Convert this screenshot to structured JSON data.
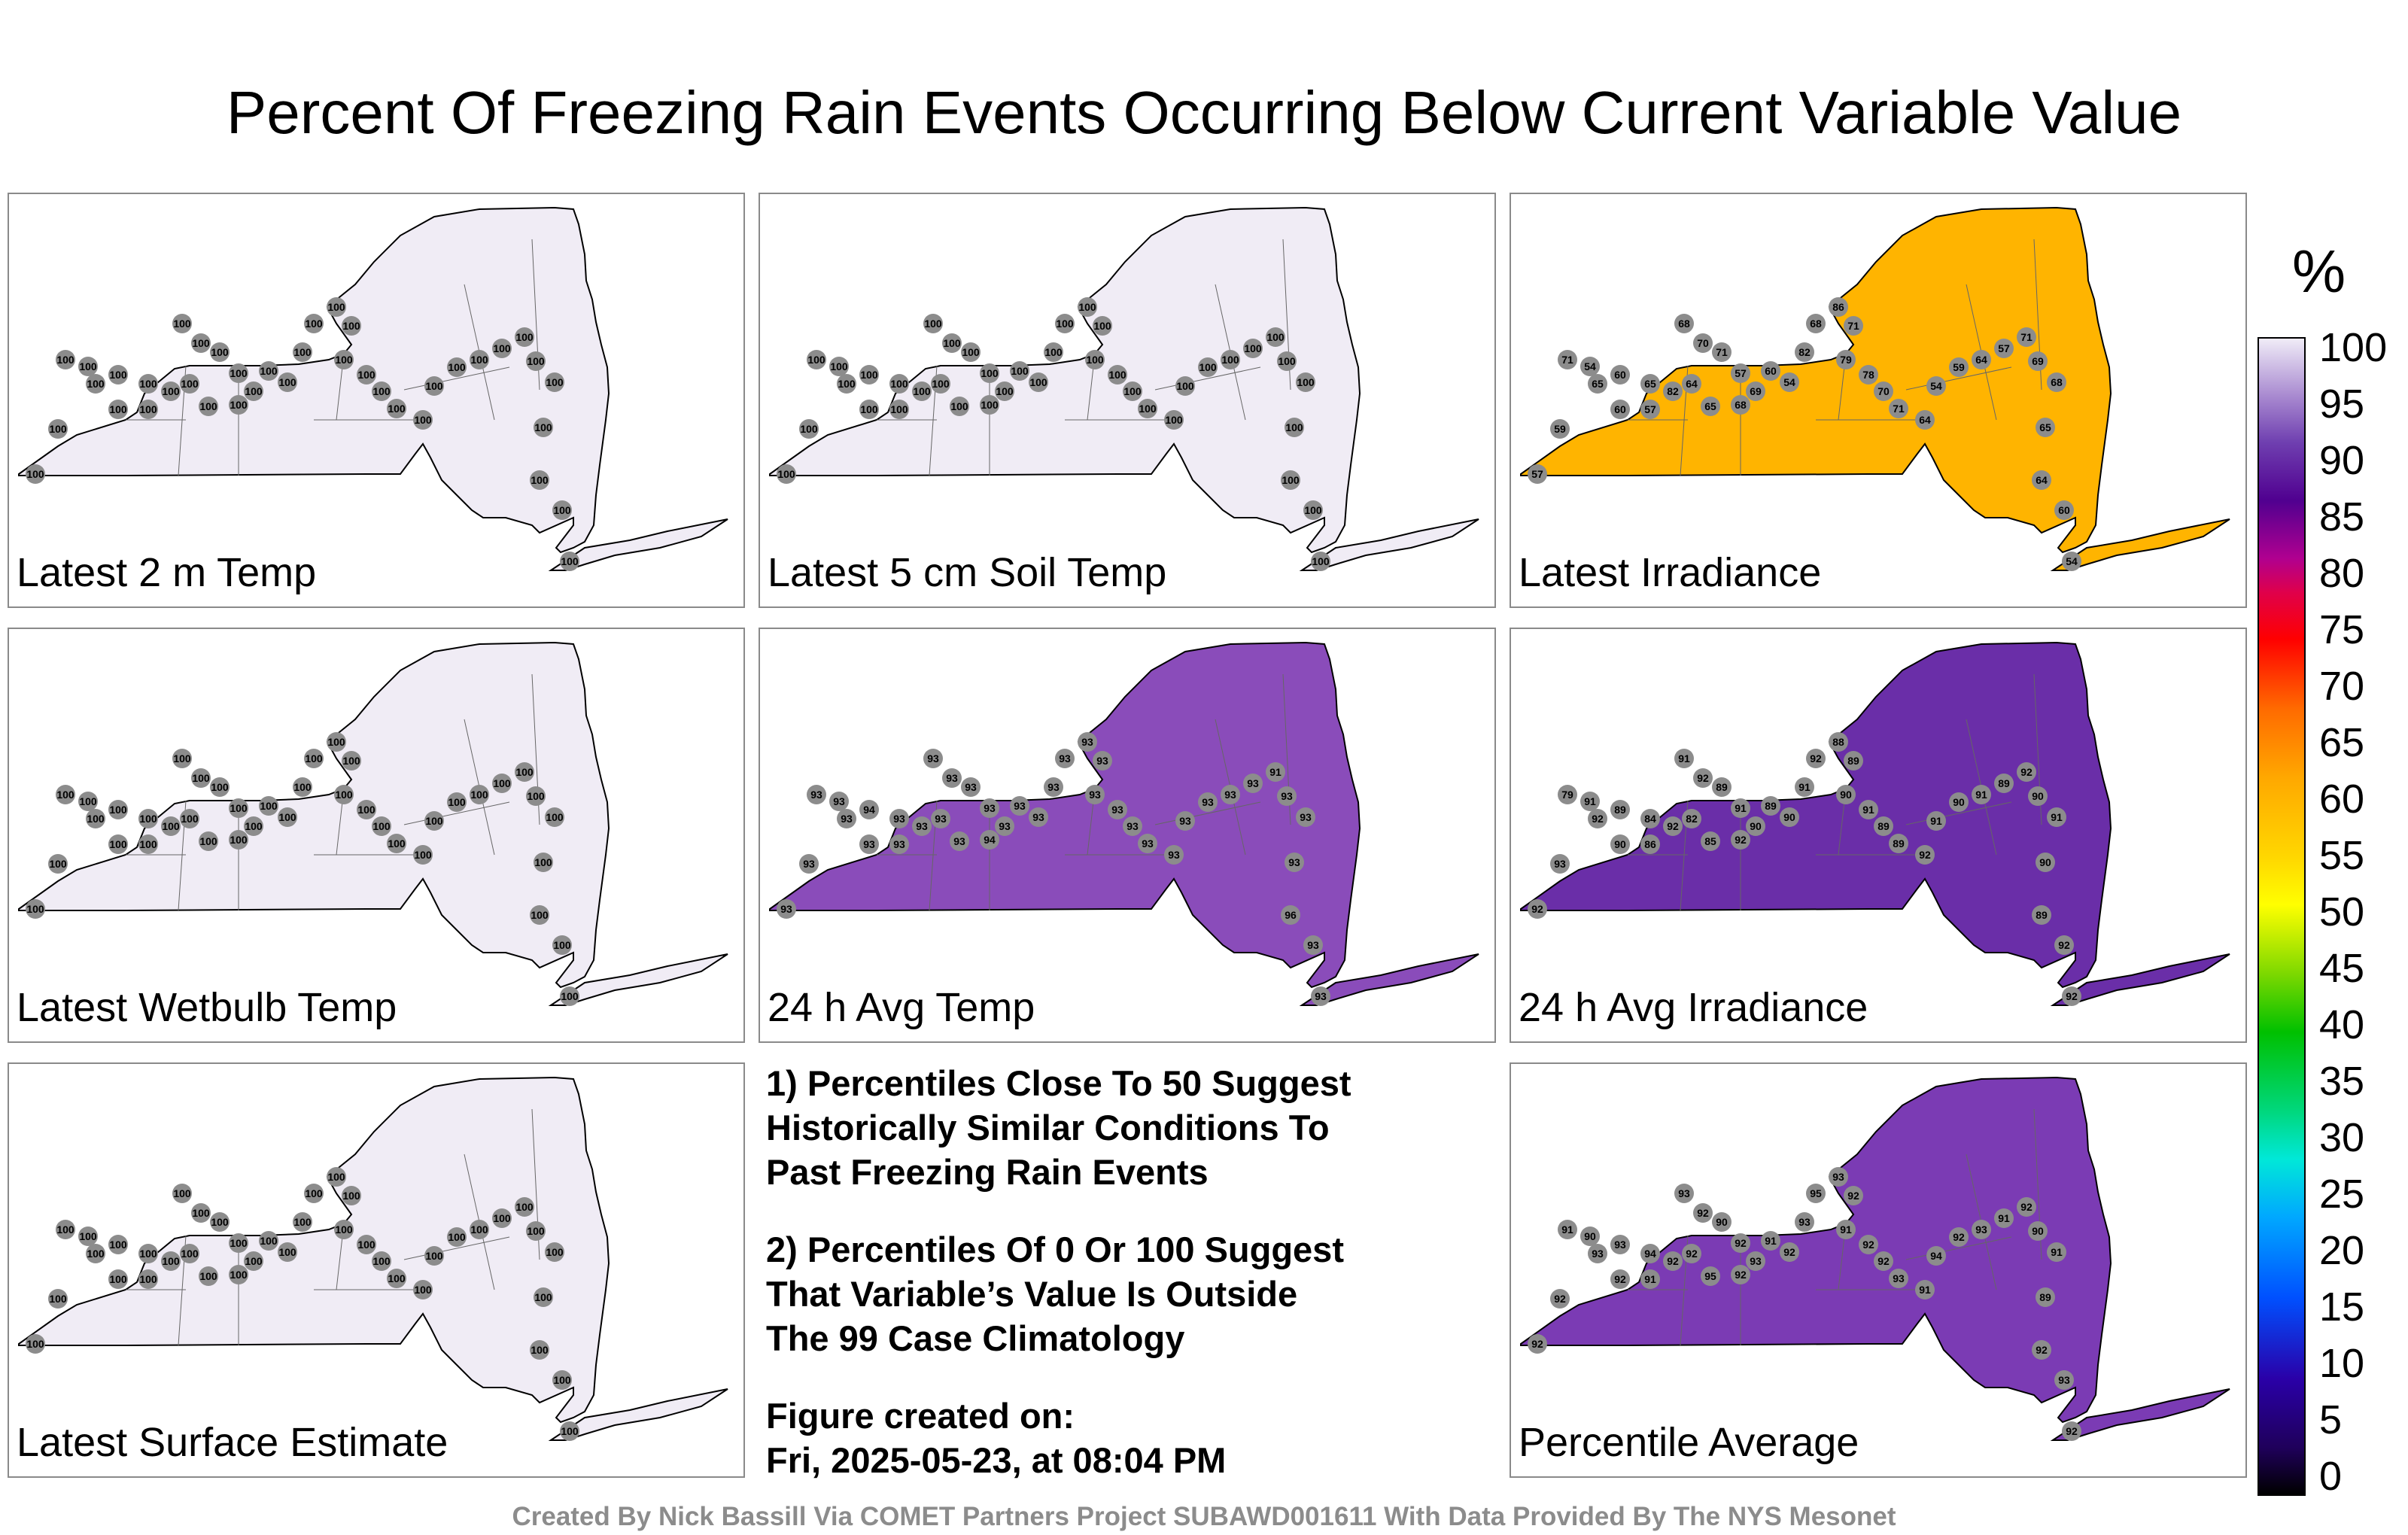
{
  "title": "Percent Of Freezing Rain Events Occurring Below Current Variable Value",
  "panels": [
    {
      "label": "Latest 2 m Temp",
      "fill": "#f0ecf5",
      "values": [
        100,
        100,
        100,
        100,
        100,
        100,
        100,
        100,
        100,
        100,
        100,
        100,
        100,
        100,
        100,
        100,
        100,
        100,
        100,
        100,
        100,
        100,
        100,
        100,
        100,
        100,
        100,
        100,
        100,
        100,
        100,
        100,
        100,
        100,
        100,
        100,
        100,
        100,
        100,
        100
      ]
    },
    {
      "label": "Latest 5 cm Soil Temp",
      "fill": "#f0ecf5",
      "values": [
        100,
        100,
        100,
        100,
        100,
        100,
        100,
        100,
        100,
        100,
        100,
        100,
        100,
        100,
        100,
        100,
        100,
        100,
        100,
        100,
        100,
        100,
        100,
        100,
        100,
        100,
        100,
        100,
        100,
        100,
        100,
        100,
        100,
        100,
        100,
        100,
        100,
        100,
        100,
        100
      ]
    },
    {
      "label": "Latest Irradiance",
      "fill": "#ffb400",
      "values": [
        57,
        59,
        71,
        54,
        65,
        60,
        60,
        57,
        65,
        82,
        64,
        65,
        68,
        70,
        71,
        57,
        68,
        69,
        60,
        54,
        82,
        68,
        86,
        71,
        79,
        78,
        70,
        71,
        64,
        54,
        59,
        64,
        57,
        71,
        69,
        68,
        65,
        64,
        60,
        54
      ]
    },
    {
      "label": "Latest Wetbulb Temp",
      "fill": "#f0ecf5",
      "values": [
        100,
        100,
        100,
        100,
        100,
        100,
        100,
        100,
        100,
        100,
        100,
        100,
        100,
        100,
        100,
        100,
        100,
        100,
        100,
        100,
        100,
        100,
        100,
        100,
        100,
        100,
        100,
        100,
        100,
        100,
        100,
        100,
        100,
        100,
        100,
        100,
        100,
        100,
        100,
        100
      ]
    },
    {
      "label": "24 h Avg Temp",
      "fill": "#8a4cba",
      "values": [
        93,
        93,
        93,
        93,
        93,
        94,
        93,
        93,
        93,
        93,
        93,
        93,
        93,
        93,
        93,
        93,
        94,
        93,
        93,
        93,
        93,
        93,
        93,
        93,
        93,
        93,
        93,
        93,
        93,
        93,
        93,
        93,
        93,
        91,
        93,
        93,
        93,
        96,
        93,
        93
      ]
    },
    {
      "label": "24 h Avg Irradiance",
      "fill": "#6a2ea8",
      "values": [
        92,
        93,
        79,
        91,
        92,
        89,
        90,
        86,
        84,
        92,
        82,
        85,
        91,
        92,
        89,
        91,
        92,
        90,
        89,
        90,
        91,
        92,
        88,
        89,
        90,
        91,
        89,
        89,
        92,
        91,
        90,
        91,
        89,
        92,
        90,
        91,
        90,
        89,
        92,
        92
      ]
    },
    {
      "label": "Latest Surface Estimate",
      "fill": "#f0ecf5",
      "values": [
        100,
        100,
        100,
        100,
        100,
        100,
        100,
        100,
        100,
        100,
        100,
        100,
        100,
        100,
        100,
        100,
        100,
        100,
        100,
        100,
        100,
        100,
        100,
        100,
        100,
        100,
        100,
        100,
        100,
        100,
        100,
        100,
        100,
        100,
        100,
        100,
        100,
        100,
        100,
        100
      ]
    },
    {
      "label": "Percentile Average",
      "fill": "#7b3bb4",
      "values": [
        92,
        92,
        91,
        90,
        93,
        93,
        92,
        91,
        94,
        92,
        92,
        95,
        93,
        92,
        90,
        92,
        92,
        93,
        91,
        92,
        93,
        95,
        93,
        92,
        91,
        92,
        92,
        93,
        91,
        94,
        92,
        93,
        91,
        92,
        90,
        91,
        89,
        92,
        93,
        92
      ]
    }
  ],
  "notes": [
    [
      "1) Percentiles Close To 50 Suggest",
      "Historically Similar Conditions To",
      "Past Freezing Rain Events"
    ],
    [
      "2) Percentiles Of 0 Or 100 Suggest",
      "That Variable’s Value Is Outside",
      "The 99 Case Climatology"
    ],
    [
      "Figure created on:",
      "Fri, 2025-05-23, at 08:04 PM"
    ]
  ],
  "colorbar": {
    "unit": "%",
    "ticks": [
      "100",
      "95",
      "90",
      "85",
      "80",
      "75",
      "70",
      "65",
      "60",
      "55",
      "50",
      "45",
      "40",
      "35",
      "30",
      "25",
      "20",
      "15",
      "10",
      "5",
      "0"
    ]
  },
  "credit": "Created By Nick Bassill Via COMET Partners Project SUBAWD001611 With Data Provided By The NYS Mesonet"
}
